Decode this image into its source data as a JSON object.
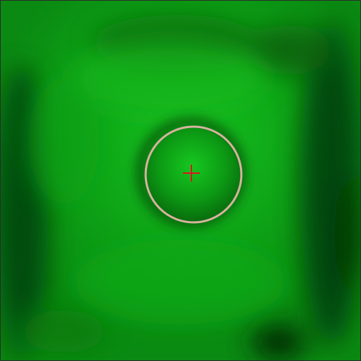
{
  "camera_view": {
    "overlay_shape": "circle-reticle",
    "center_marker": "crosshair-plus-icon",
    "colors": {
      "feed_base": "#0a8a12",
      "feed_highlight": "#12b81c",
      "feed_shadow": "#064a08",
      "feed_darkest": "#052b06",
      "ring": "#d8b3a0",
      "crosshair": "#e0141e"
    }
  }
}
